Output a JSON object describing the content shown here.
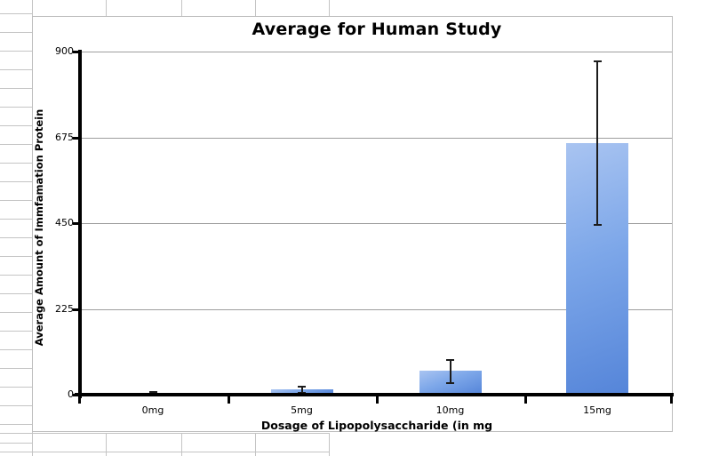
{
  "chart_data": {
    "type": "bar",
    "title": "Average for Human Study",
    "xlabel": "Dosage of Lipopolysaccharide (in mg",
    "ylabel": "Average Amount of Immfamation Protein",
    "categories": [
      "0mg",
      "5mg",
      "10mg",
      "15mg"
    ],
    "values": [
      3,
      12,
      60,
      657
    ],
    "error_low": [
      0,
      4,
      30,
      445
    ],
    "error_high": [
      7,
      20,
      91,
      875
    ],
    "ylim": [
      0,
      900
    ],
    "yticks": [
      0,
      225,
      450,
      675,
      900
    ],
    "grid": true,
    "legend": false,
    "bar_color_top": "#a9c4f1",
    "bar_color_bottom": "#5585d9",
    "error_bar_color": "#1c1c1c",
    "axis_color": "#000000",
    "gridline_color": "#9e9e9e"
  }
}
